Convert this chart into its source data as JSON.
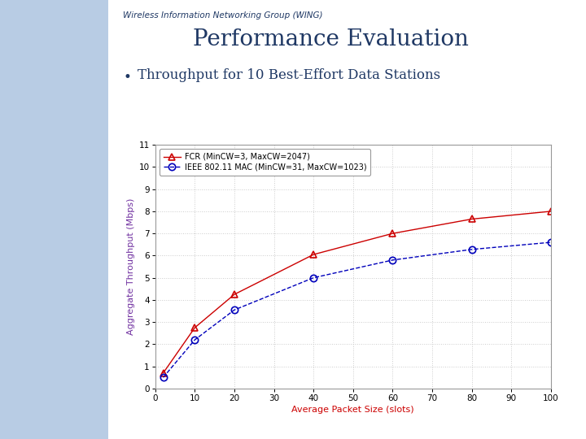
{
  "fcr_x": [
    2,
    10,
    20,
    40,
    60,
    80,
    100
  ],
  "fcr_y": [
    0.7,
    2.75,
    4.25,
    6.05,
    7.0,
    7.65,
    8.0
  ],
  "ieee_x": [
    2,
    10,
    20,
    40,
    60,
    80,
    100
  ],
  "ieee_y": [
    0.5,
    2.2,
    3.55,
    5.0,
    5.8,
    6.28,
    6.6
  ],
  "fcr_label": "FCR (MinCW=3, MaxCW=2047)",
  "ieee_label": "IEEE 802.11 MAC (MinCW=31, MaxCW=1023)",
  "fcr_color": "#cc0000",
  "ieee_color": "#0000bb",
  "xlabel": "Average Packet Size (slots)",
  "ylabel": "Aggregate Throughput (Mbps)",
  "xlim": [
    0,
    100
  ],
  "ylim": [
    0,
    11
  ],
  "xticks": [
    0,
    10,
    20,
    30,
    40,
    50,
    60,
    70,
    80,
    90,
    100
  ],
  "yticks": [
    0,
    1,
    2,
    3,
    4,
    5,
    6,
    7,
    8,
    9,
    10,
    11
  ],
  "title_main": "Performance Evaluation",
  "title_sub": "Throughput for 10 Best-Effort Data Stations",
  "wing_label": "Wireless Information Networking Group (WING)",
  "bg_color": "#ffffff",
  "left_panel_color": "#b8cce4",
  "xlabel_color": "#cc0000",
  "ylabel_color": "#7030a0",
  "grid_color": "#cccccc",
  "title_color": "#1f3864",
  "wing_color": "#1f3864",
  "bullet_color": "#1f3864"
}
